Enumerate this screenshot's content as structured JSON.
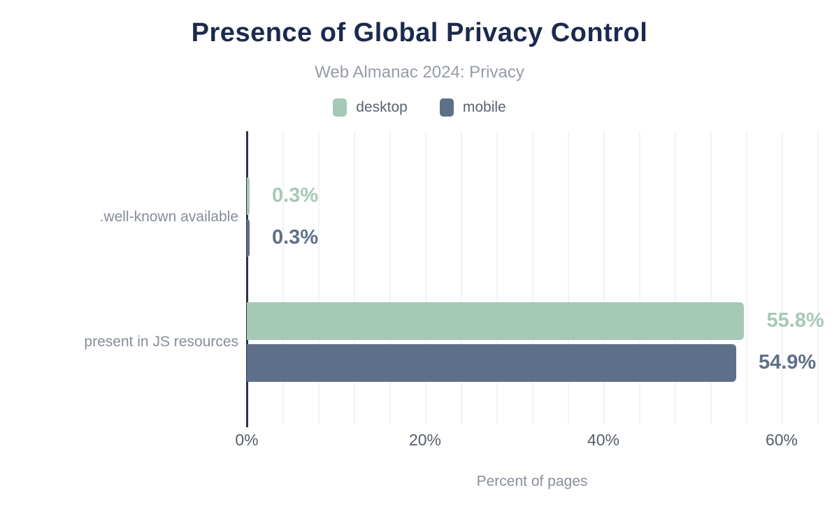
{
  "header": {
    "title": "Presence of Global Privacy Control",
    "subtitle": "Web Almanac 2024: Privacy"
  },
  "colors": {
    "title": "#1b2a4d",
    "subtitle": "#969ca6",
    "desktop": "#a6c8b6",
    "mobile": "#5e7089",
    "axis_line": "#2b3442",
    "gridline": "#f2f3f4",
    "category_label": "#858d9b",
    "tick_label": "#545d6b"
  },
  "chart_data": {
    "type": "bar",
    "orientation": "horizontal",
    "title": "Presence of Global Privacy Control",
    "subtitle": "Web Almanac 2024: Privacy",
    "categories": [
      ".well-known available",
      "present in JS resources"
    ],
    "series": [
      {
        "name": "desktop",
        "color": "#a6c8b6",
        "values": [
          0.3,
          55.8
        ],
        "labels": [
          "0.3%",
          "55.8%"
        ]
      },
      {
        "name": "mobile",
        "color": "#5e7089",
        "values": [
          0.3,
          54.9
        ],
        "labels": [
          "0.3%",
          "54.9%"
        ]
      }
    ],
    "xlabel": "Percent of pages",
    "ylabel": "",
    "xlim": [
      0,
      64
    ],
    "xticks": [
      0,
      20,
      40,
      60
    ],
    "xtick_labels": [
      "0%",
      "20%",
      "40%",
      "60%"
    ],
    "grid_step_pct": 4,
    "grid": true,
    "legend_position": "top",
    "value_label_format": "percent_one_decimal"
  }
}
